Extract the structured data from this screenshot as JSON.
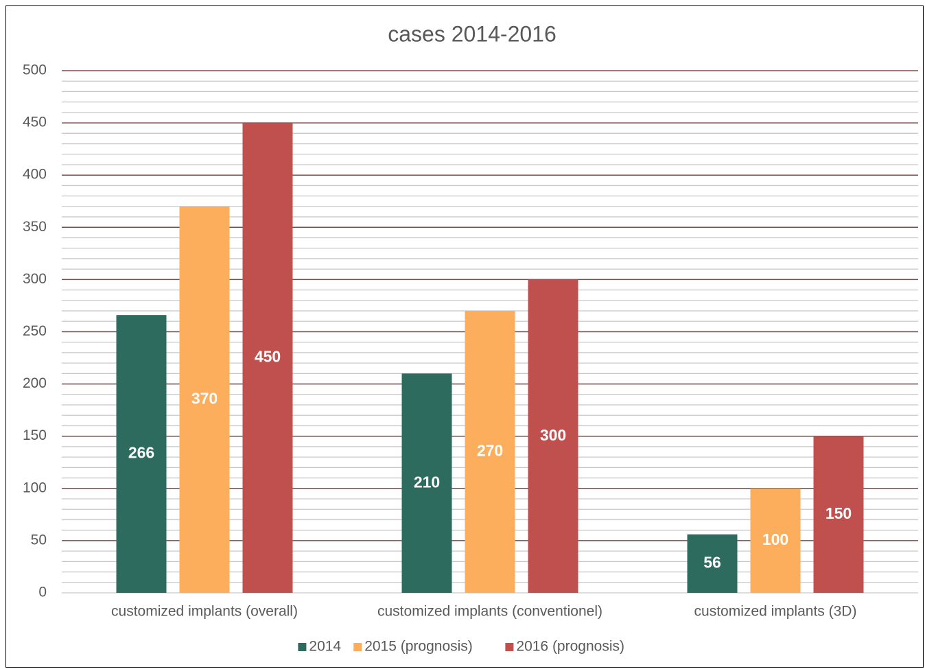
{
  "chart_data": {
    "type": "bar",
    "title": "cases 2014-2016",
    "categories": [
      "customized implants (overall)",
      "customized implants (conventionel)",
      "customized implants (3D)"
    ],
    "series": [
      {
        "name": "2014",
        "color": "#2e6b5f",
        "values": [
          266,
          210,
          56
        ]
      },
      {
        "name": "2015 (prognosis)",
        "color": "#fcae5c",
        "values": [
          370,
          270,
          100
        ]
      },
      {
        "name": "2016 (prognosis)",
        "color": "#c0504d",
        "values": [
          450,
          300,
          150
        ]
      }
    ],
    "ylim": [
      0,
      500
    ],
    "yticks": [
      0,
      50,
      100,
      150,
      200,
      250,
      300,
      350,
      400,
      450,
      500
    ],
    "minor_yticks": [
      10,
      20,
      30,
      40,
      60,
      70,
      80,
      90,
      110,
      120,
      130,
      140,
      160,
      170,
      180,
      190,
      210,
      220,
      230,
      240,
      260,
      270,
      280,
      290,
      310,
      320,
      330,
      340,
      360,
      370,
      380,
      390,
      410,
      420,
      430,
      440,
      460,
      470,
      480,
      490
    ],
    "grid": true,
    "legend": "bottom"
  }
}
